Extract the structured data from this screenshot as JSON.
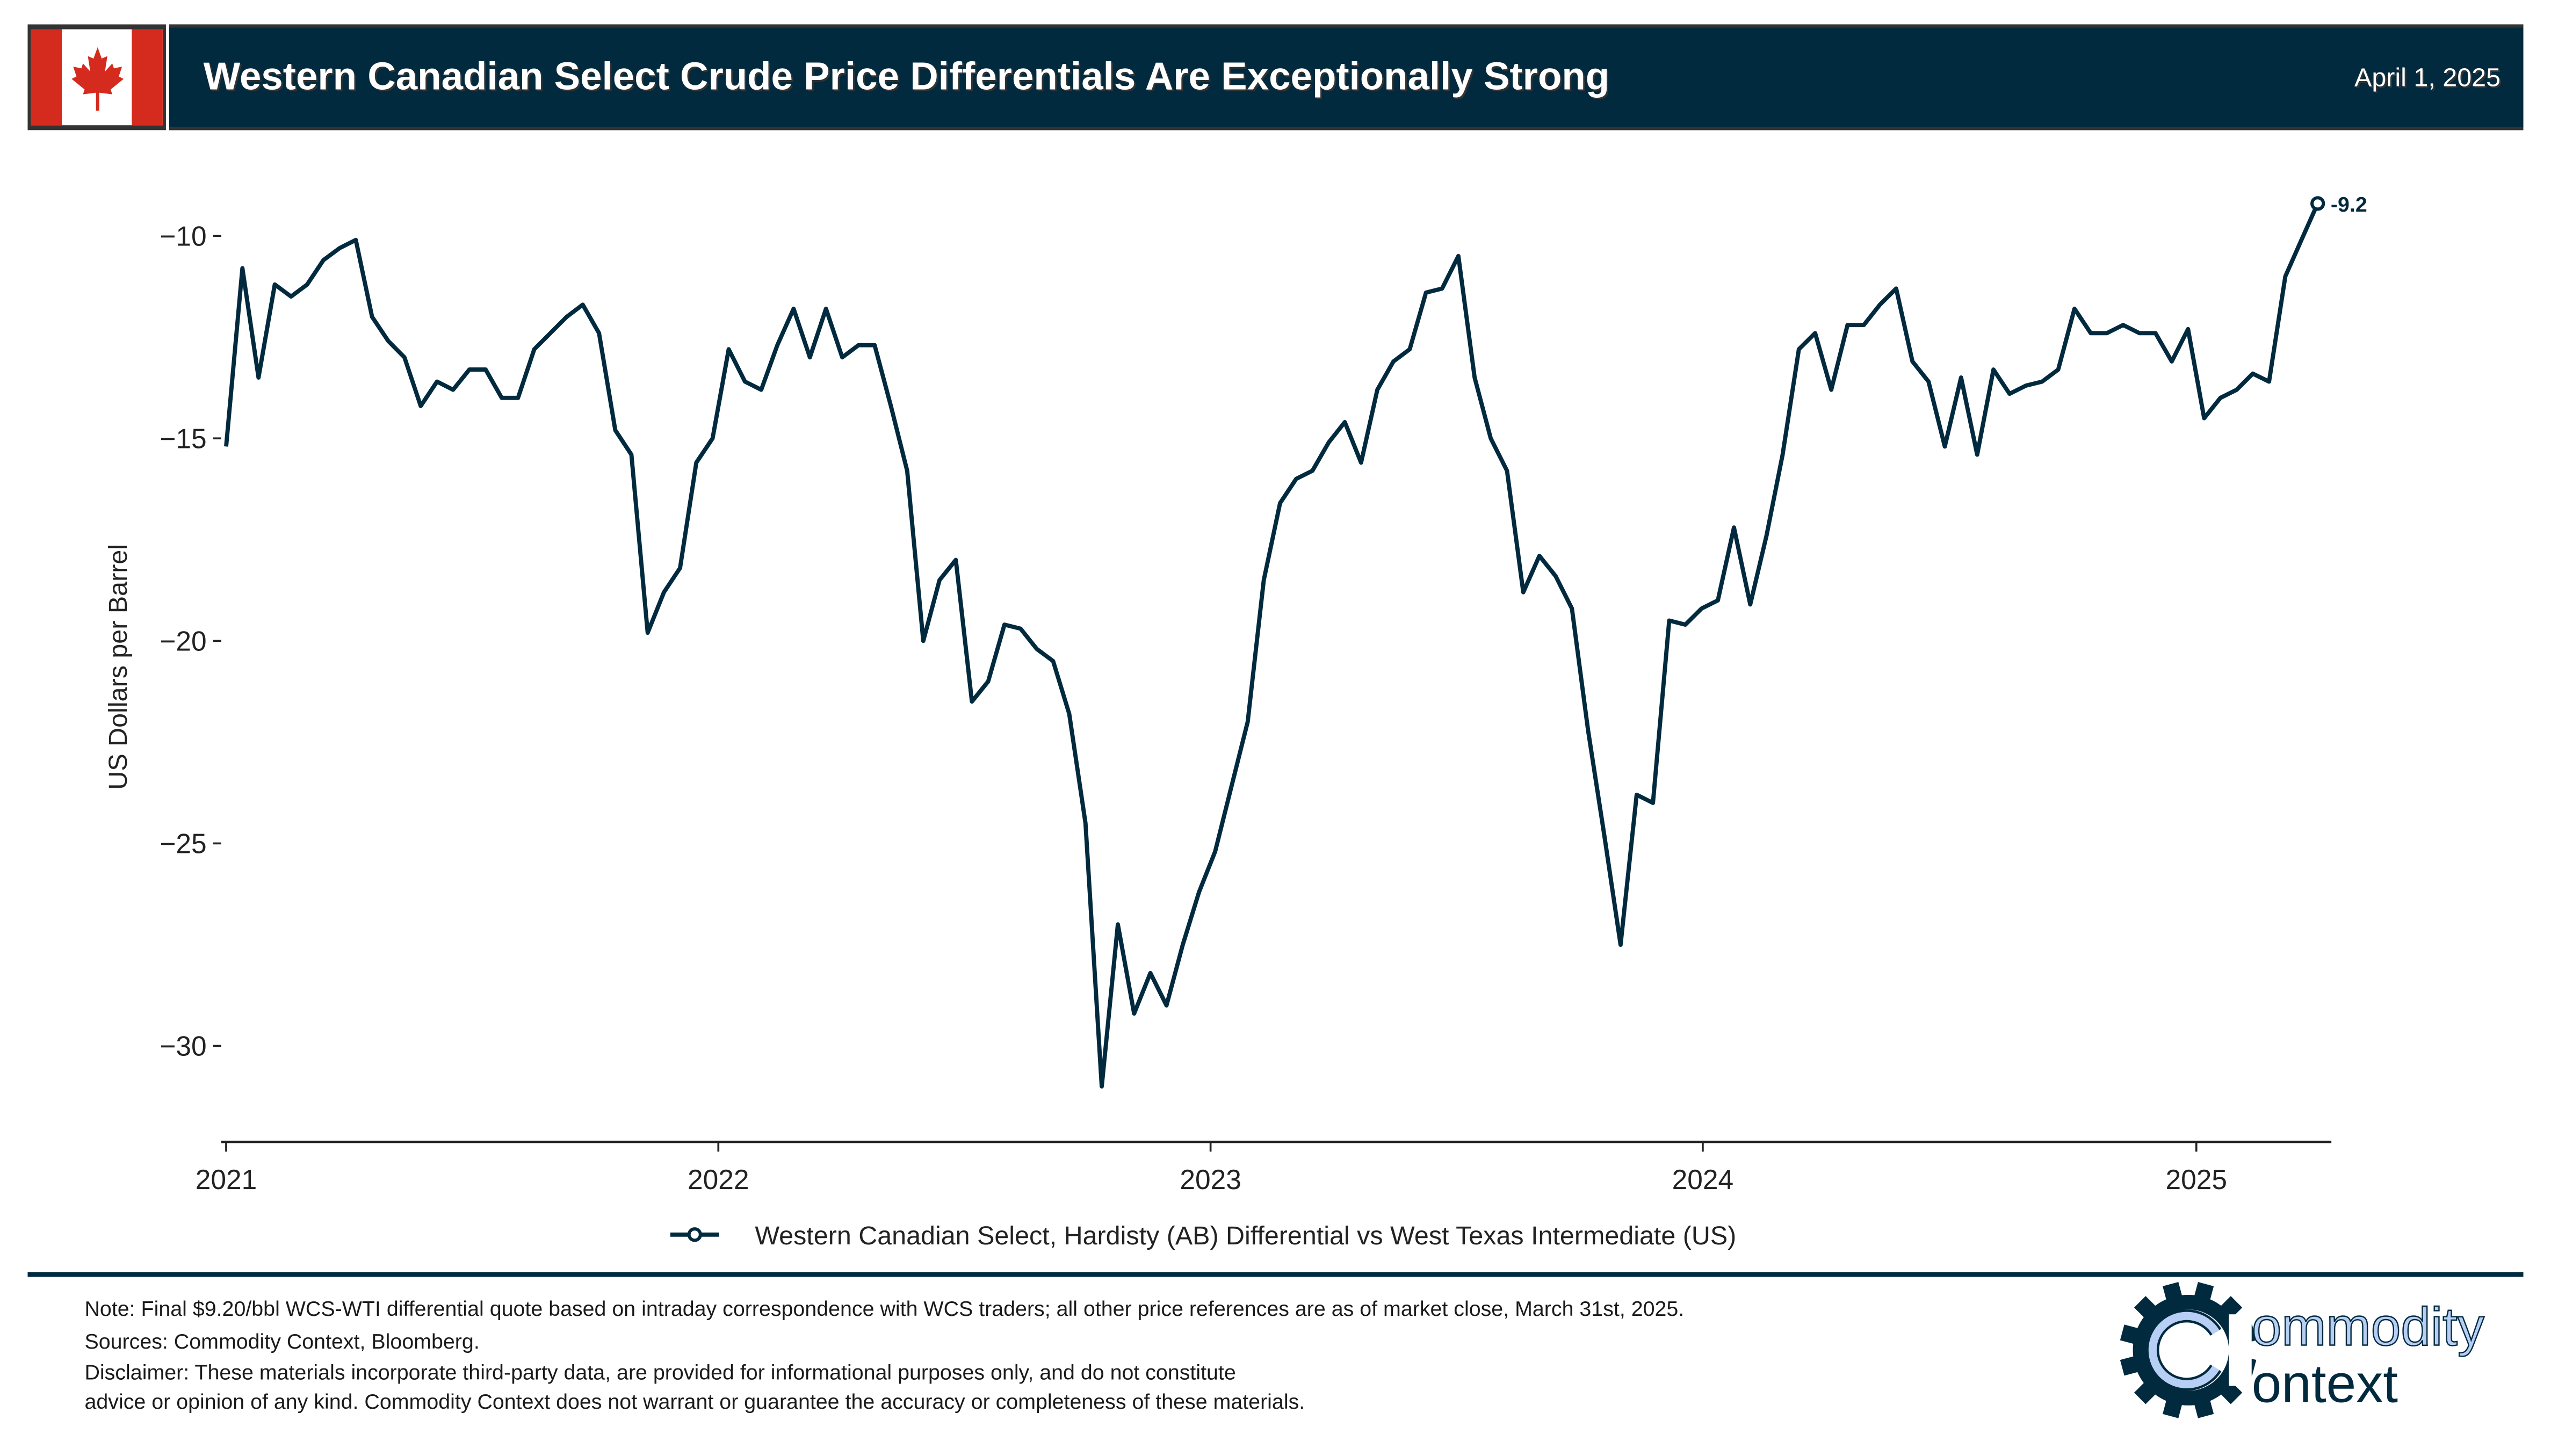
{
  "header": {
    "title": "Western Canadian Select Crude Price Differentials Are Exceptionally Strong",
    "date": "April 1, 2025",
    "flag": "canada-flag-icon"
  },
  "colors": {
    "brand": "#022a3f",
    "flag_red": "#d52b1e",
    "logo_light": "#b8cff5"
  },
  "chart_data": {
    "type": "line",
    "title": "Western Canadian Select Crude Price Differentials Are Exceptionally Strong",
    "xlabel": "",
    "ylabel": "US Dollars per Barrel",
    "x_ticks": [
      "2021",
      "2022",
      "2023",
      "2024",
      "2025"
    ],
    "y_ticks": [
      -10,
      -15,
      -20,
      -25,
      -30
    ],
    "y_tick_labels": [
      "−10",
      "−15",
      "−20",
      "−25",
      "−30"
    ],
    "ylim": [
      -32.5,
      -8.2
    ],
    "xlim": [
      "2020-12-24",
      "2025-04-15"
    ],
    "grid": false,
    "legend_position": "bottom-center",
    "series": [
      {
        "name": "Western Canadian Select, Hardisty (AB) Differential vs West Texas Intermediate (US)",
        "start": "2021-01-01",
        "end": "2025-04-01",
        "values": [
          -15.2,
          -10.8,
          -13.5,
          -11.2,
          -11.5,
          -11.2,
          -10.6,
          -10.3,
          -10.1,
          -12.0,
          -12.6,
          -13.0,
          -14.2,
          -13.6,
          -13.8,
          -13.3,
          -13.3,
          -14.0,
          -14.0,
          -12.8,
          -12.4,
          -12.0,
          -11.7,
          -12.4,
          -14.8,
          -15.4,
          -19.8,
          -18.8,
          -18.2,
          -15.6,
          -15.0,
          -12.8,
          -13.6,
          -13.8,
          -12.7,
          -11.8,
          -13.0,
          -11.8,
          -13.0,
          -12.7,
          -12.7,
          -14.2,
          -15.8,
          -20.0,
          -18.5,
          -18.0,
          -21.5,
          -21.0,
          -19.6,
          -19.7,
          -20.2,
          -20.5,
          -21.8,
          -24.5,
          -31.0,
          -27.0,
          -29.2,
          -28.2,
          -29.0,
          -27.5,
          -26.2,
          -25.2,
          -23.6,
          -22.0,
          -18.5,
          -16.6,
          -16.0,
          -15.8,
          -15.1,
          -14.6,
          -15.6,
          -13.8,
          -13.1,
          -12.8,
          -11.4,
          -11.3,
          -10.5,
          -13.5,
          -15.0,
          -15.8,
          -18.8,
          -17.9,
          -18.4,
          -19.2,
          -22.2,
          -24.8,
          -27.5,
          -23.8,
          -24.0,
          -19.5,
          -19.6,
          -19.2,
          -19.0,
          -17.2,
          -19.1,
          -17.4,
          -15.4,
          -12.8,
          -12.4,
          -13.8,
          -12.2,
          -12.2,
          -11.7,
          -11.3,
          -13.1,
          -13.6,
          -15.2,
          -13.5,
          -15.4,
          -13.3,
          -13.9,
          -13.7,
          -13.6,
          -13.3,
          -11.8,
          -12.4,
          -12.4,
          -12.2,
          -12.4,
          -12.4,
          -13.1,
          -12.3,
          -14.5,
          -14.0,
          -13.8,
          -13.4,
          -13.6,
          -11.0,
          -10.1,
          -9.2
        ],
        "last_value_label": "-9.2"
      }
    ]
  },
  "footer": {
    "note": "Note: Final $9.20/bbl WCS-WTI differential quote based on intraday correspondence with WCS traders; all other price references are as of market close, March 31st, 2025.",
    "sources": "Sources: Commodity Context, Bloomberg.",
    "disclaimer_1": "Disclaimer: These materials incorporate third-party data, are provided for informational purposes only, and do not constitute",
    "disclaimer_2": "advice or opinion of any kind. Commodity Context does not warrant or guarantee the accuracy or completeness of these materials."
  },
  "logo": {
    "line1": "ommodity",
    "line2": "ontext",
    "icon": "gear-c-logo-icon"
  }
}
